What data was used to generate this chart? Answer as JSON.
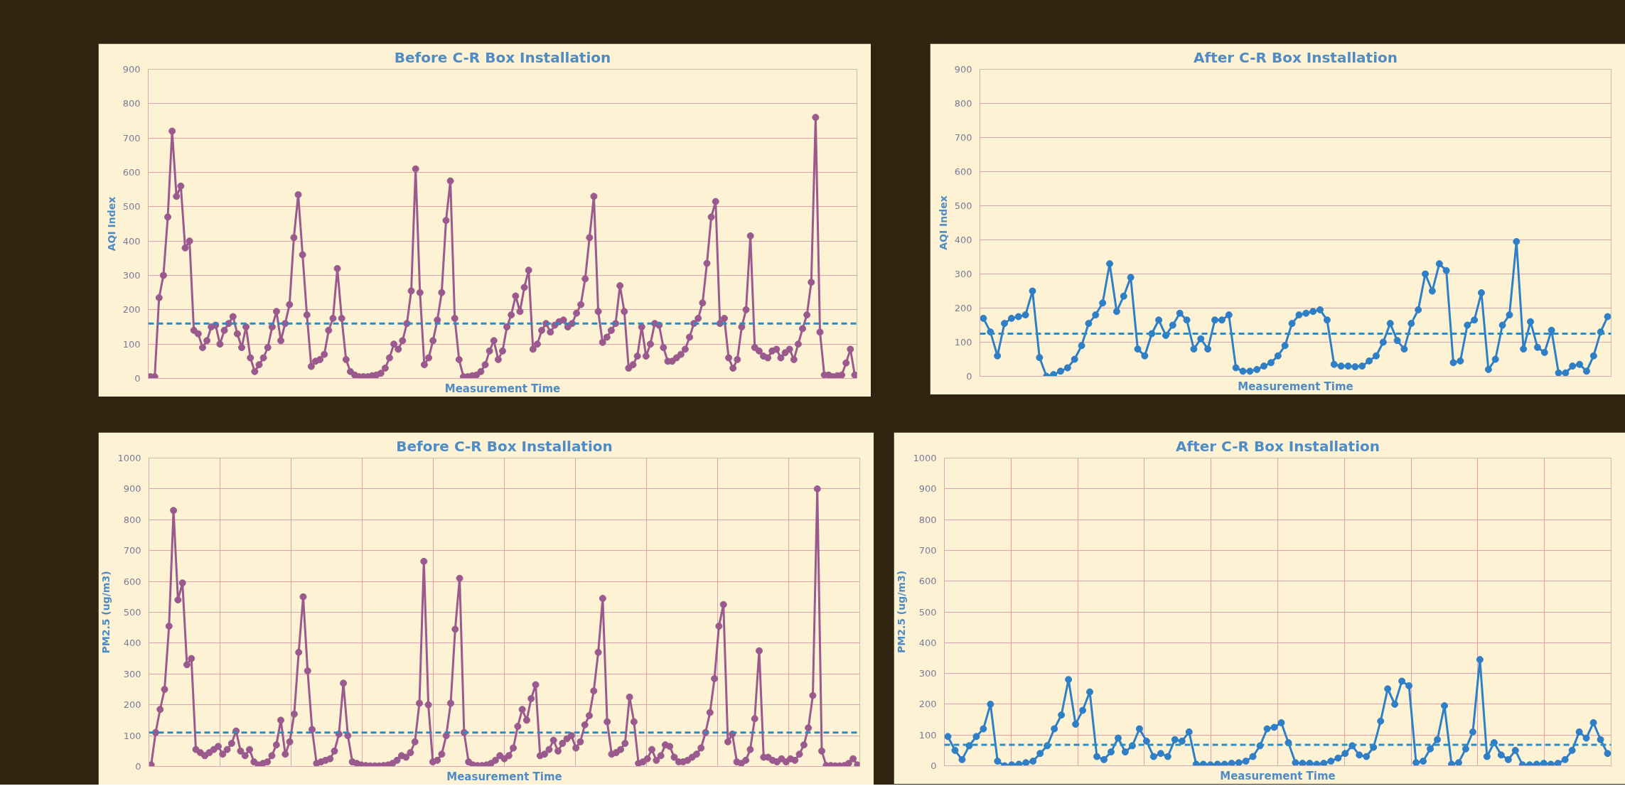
{
  "chart_data": [
    {
      "type": "line",
      "title": "Before C-R Box Installation",
      "xlabel": "Measurement Time",
      "ylabel": "AQI Index",
      "marker": "circle",
      "grid": "y",
      "tick_labels": "y",
      "ylim": [
        0,
        900
      ],
      "yticks": [
        0,
        100,
        200,
        300,
        400,
        500,
        600,
        700,
        800,
        900
      ],
      "categories": [
        null,
        null,
        null,
        null,
        null,
        null,
        null,
        null,
        null,
        null,
        null,
        null,
        null,
        null,
        null,
        null,
        null,
        null,
        null,
        null,
        null,
        null,
        null,
        null,
        null,
        null,
        null,
        null,
        null,
        null,
        null,
        null,
        null,
        null,
        null,
        null,
        null,
        null,
        null,
        null,
        null,
        null,
        null,
        null,
        null,
        null,
        null,
        null,
        null,
        null,
        null,
        null,
        null,
        null,
        null,
        null,
        null,
        null,
        null,
        null,
        null,
        null,
        null,
        null,
        null,
        null,
        null,
        null,
        null,
        null,
        null,
        null,
        null,
        null,
        null,
        null,
        null,
        null,
        null,
        null,
        null,
        null,
        null,
        null,
        null,
        null,
        null,
        null,
        null,
        null,
        null,
        null,
        null,
        null,
        null,
        null,
        null,
        null,
        null,
        null,
        null,
        null,
        null,
        null,
        null,
        null,
        null,
        null,
        null,
        null,
        null,
        null,
        null,
        null,
        null,
        null,
        null,
        null,
        null,
        null,
        null,
        null,
        null,
        null,
        null,
        null,
        null,
        null,
        null,
        null,
        null,
        null,
        null,
        null,
        null,
        null,
        null,
        null,
        null,
        null,
        null,
        null,
        null,
        null,
        null,
        null,
        null,
        null,
        null,
        null,
        null,
        null,
        null,
        null,
        null,
        null,
        null,
        null,
        null,
        null,
        null,
        null,
        null
      ],
      "series": [
        {
          "color": "#9b5a8e",
          "values": [
            5,
            5,
            235,
            300,
            470,
            720,
            530,
            560,
            380,
            400,
            140,
            130,
            90,
            110,
            150,
            155,
            100,
            140,
            160,
            180,
            130,
            90,
            150,
            60,
            20,
            40,
            60,
            90,
            150,
            195,
            110,
            160,
            215,
            410,
            535,
            360,
            185,
            35,
            50,
            55,
            70,
            140,
            175,
            320,
            175,
            55,
            20,
            10,
            5,
            5,
            5,
            8,
            10,
            15,
            30,
            60,
            100,
            85,
            110,
            160,
            255,
            610,
            250,
            40,
            60,
            110,
            170,
            250,
            460,
            575,
            175,
            55,
            5,
            5,
            8,
            10,
            20,
            40,
            80,
            110,
            55,
            80,
            150,
            185,
            240,
            195,
            265,
            315,
            85,
            100,
            140,
            160,
            135,
            155,
            165,
            170,
            150,
            160,
            190,
            215,
            290,
            410,
            530,
            195,
            105,
            120,
            140,
            160,
            270,
            195,
            30,
            40,
            65,
            150,
            65,
            100,
            160,
            155,
            90,
            50,
            50,
            60,
            70,
            85,
            120,
            160,
            175,
            220,
            335,
            470,
            515,
            160,
            175,
            60,
            30,
            55,
            150,
            200,
            415,
            90,
            80,
            65,
            60,
            80,
            85,
            60,
            75,
            85,
            55,
            100,
            145,
            185,
            280,
            760,
            135,
            10,
            10,
            5,
            8,
            10,
            45,
            85,
            10
          ]
        }
      ],
      "ref_lines": [
        {
          "axis": "y",
          "value": 160,
          "color": "#2b8cc4",
          "line_style": "dashed"
        }
      ]
    },
    {
      "type": "line",
      "title": "After C-R Box Installation",
      "xlabel": "Measurement Time",
      "ylabel": "AQI Index",
      "marker": "circle",
      "grid": "y",
      "tick_labels": "y",
      "ylim": [
        0,
        900
      ],
      "yticks": [
        0,
        100,
        200,
        300,
        400,
        500,
        600,
        700,
        800,
        900
      ],
      "categories": [
        null,
        null,
        null,
        null,
        null,
        null,
        null,
        null,
        null,
        null,
        null,
        null,
        null,
        null,
        null,
        null,
        null,
        null,
        null,
        null,
        null,
        null,
        null,
        null,
        null,
        null,
        null,
        null,
        null,
        null,
        null,
        null,
        null,
        null,
        null,
        null,
        null,
        null,
        null,
        null,
        null,
        null,
        null,
        null,
        null,
        null,
        null,
        null,
        null,
        null,
        null,
        null,
        null,
        null,
        null,
        null,
        null,
        null,
        null,
        null,
        null,
        null,
        null,
        null,
        null,
        null,
        null,
        null,
        null,
        null,
        null,
        null,
        null,
        null,
        null,
        null,
        null,
        null,
        null,
        null,
        null,
        null,
        null,
        null,
        null,
        null,
        null,
        null,
        null,
        null
      ],
      "series": [
        {
          "color": "#2f7fc6",
          "values": [
            170,
            130,
            60,
            155,
            170,
            175,
            180,
            250,
            55,
            0,
            5,
            15,
            25,
            50,
            90,
            155,
            180,
            215,
            330,
            190,
            235,
            290,
            80,
            60,
            125,
            165,
            120,
            150,
            185,
            165,
            80,
            110,
            80,
            165,
            165,
            180,
            25,
            15,
            15,
            20,
            30,
            40,
            60,
            90,
            155,
            180,
            185,
            190,
            195,
            165,
            35,
            30,
            30,
            28,
            30,
            45,
            60,
            100,
            155,
            105,
            80,
            155,
            195,
            300,
            250,
            330,
            310,
            40,
            45,
            150,
            165,
            245,
            20,
            50,
            150,
            180,
            395,
            80,
            160,
            85,
            70,
            135,
            10,
            10,
            30,
            35,
            15,
            60,
            130,
            175
          ]
        }
      ],
      "ref_lines": [
        {
          "axis": "y",
          "value": 125,
          "color": "#2b8cc4",
          "line_style": "dashed"
        }
      ]
    },
    {
      "type": "line",
      "title": "Before C-R Box Installation",
      "xlabel": "Measurement Time",
      "ylabel": "PM2.5 (ug/m3)",
      "marker": "circle",
      "grid": true,
      "tick_labels": "y",
      "ylim": [
        0,
        1000
      ],
      "yticks": [
        0,
        100,
        200,
        300,
        400,
        500,
        600,
        700,
        800,
        900,
        1000
      ],
      "categories": [
        null,
        null,
        null,
        null,
        null,
        null,
        null,
        null,
        null,
        null,
        null,
        null,
        null,
        null,
        null,
        null,
        null,
        null,
        null,
        null,
        null,
        null,
        null,
        null,
        null,
        null,
        null,
        null,
        null,
        null,
        null,
        null,
        null,
        null,
        null,
        null,
        null,
        null,
        null,
        null,
        null,
        null,
        null,
        null,
        null,
        null,
        null,
        null,
        null,
        null,
        null,
        null,
        null,
        null,
        null,
        null,
        null,
        null,
        null,
        null,
        null,
        null,
        null,
        null,
        null,
        null,
        null,
        null,
        null,
        null,
        null,
        null,
        null,
        null,
        null,
        null,
        null,
        null,
        null,
        null,
        null,
        null,
        null,
        null,
        null,
        null,
        null,
        null,
        null,
        null,
        null,
        null,
        null,
        null,
        null,
        null,
        null,
        null,
        null,
        null,
        null,
        null,
        null,
        null,
        null,
        null,
        null,
        null,
        null,
        null,
        null,
        null,
        null,
        null,
        null,
        null,
        null,
        null,
        null,
        null,
        null,
        null,
        null,
        null,
        null,
        null,
        null,
        null,
        null,
        null,
        null,
        null,
        null,
        null,
        null,
        null,
        null,
        null,
        null,
        null,
        null,
        null,
        null,
        null,
        null,
        null,
        null,
        null,
        null,
        null,
        null,
        null,
        null,
        null,
        null,
        null,
        null,
        null,
        null
      ],
      "series": [
        {
          "color": "#9b5a8e",
          "values": [
            5,
            110,
            185,
            250,
            455,
            830,
            540,
            595,
            330,
            350,
            55,
            45,
            35,
            45,
            55,
            65,
            40,
            55,
            75,
            115,
            50,
            35,
            55,
            15,
            5,
            10,
            15,
            35,
            70,
            150,
            40,
            80,
            170,
            370,
            550,
            310,
            120,
            10,
            15,
            20,
            25,
            50,
            105,
            270,
            100,
            15,
            10,
            5,
            3,
            2,
            2,
            2,
            3,
            5,
            10,
            20,
            35,
            30,
            45,
            80,
            205,
            665,
            200,
            15,
            20,
            40,
            100,
            205,
            445,
            610,
            110,
            15,
            5,
            3,
            3,
            5,
            10,
            20,
            35,
            25,
            35,
            60,
            130,
            185,
            150,
            220,
            265,
            35,
            40,
            55,
            85,
            50,
            75,
            90,
            100,
            60,
            80,
            135,
            165,
            245,
            370,
            545,
            145,
            40,
            45,
            55,
            75,
            225,
            145,
            10,
            15,
            25,
            55,
            20,
            35,
            70,
            65,
            30,
            15,
            15,
            20,
            30,
            40,
            60,
            110,
            175,
            285,
            455,
            525,
            80,
            105,
            15,
            10,
            20,
            55,
            155,
            375,
            30,
            30,
            20,
            15,
            25,
            15,
            25,
            20,
            40,
            70,
            125,
            230,
            900,
            50,
            3,
            3,
            2,
            2,
            3,
            10,
            25,
            5
          ]
        }
      ],
      "ref_lines": [
        {
          "axis": "y",
          "value": 110,
          "color": "#2b8cc4",
          "line_style": "dashed"
        }
      ]
    },
    {
      "type": "line",
      "title": "After C-R Box Installation",
      "xlabel": "Measurement Time",
      "ylabel": "PM2.5 (ug/m3)",
      "marker": "circle",
      "grid": true,
      "tick_labels": "y",
      "ylim": [
        0,
        1000
      ],
      "yticks": [
        0,
        100,
        200,
        300,
        400,
        500,
        600,
        700,
        800,
        900,
        1000
      ],
      "categories": [
        null,
        null,
        null,
        null,
        null,
        null,
        null,
        null,
        null,
        null,
        null,
        null,
        null,
        null,
        null,
        null,
        null,
        null,
        null,
        null,
        null,
        null,
        null,
        null,
        null,
        null,
        null,
        null,
        null,
        null,
        null,
        null,
        null,
        null,
        null,
        null,
        null,
        null,
        null,
        null,
        null,
        null,
        null,
        null,
        null,
        null,
        null,
        null,
        null,
        null,
        null,
        null,
        null,
        null,
        null,
        null,
        null,
        null,
        null,
        null,
        null,
        null,
        null,
        null,
        null,
        null,
        null,
        null,
        null,
        null,
        null,
        null,
        null,
        null,
        null,
        null,
        null,
        null,
        null,
        null,
        null,
        null,
        null,
        null,
        null,
        null,
        null,
        null,
        null,
        null,
        null,
        null,
        null,
        null
      ],
      "series": [
        {
          "color": "#2f7fc6",
          "values": [
            95,
            50,
            20,
            65,
            95,
            120,
            200,
            15,
            0,
            3,
            5,
            10,
            15,
            40,
            65,
            120,
            165,
            280,
            135,
            180,
            240,
            30,
            20,
            45,
            90,
            45,
            65,
            120,
            80,
            30,
            40,
            30,
            85,
            80,
            110,
            5,
            5,
            3,
            5,
            5,
            8,
            10,
            15,
            30,
            65,
            120,
            125,
            140,
            75,
            10,
            8,
            8,
            5,
            8,
            15,
            25,
            40,
            65,
            35,
            30,
            60,
            145,
            250,
            200,
            275,
            260,
            10,
            15,
            55,
            85,
            195,
            5,
            10,
            55,
            110,
            345,
            30,
            75,
            35,
            20,
            50,
            3,
            3,
            5,
            8,
            5,
            8,
            20,
            50,
            110,
            90,
            140,
            85,
            40
          ]
        }
      ],
      "ref_lines": [
        {
          "axis": "y",
          "value": 68,
          "color": "#2b8cc4",
          "line_style": "dashed"
        }
      ]
    }
  ]
}
